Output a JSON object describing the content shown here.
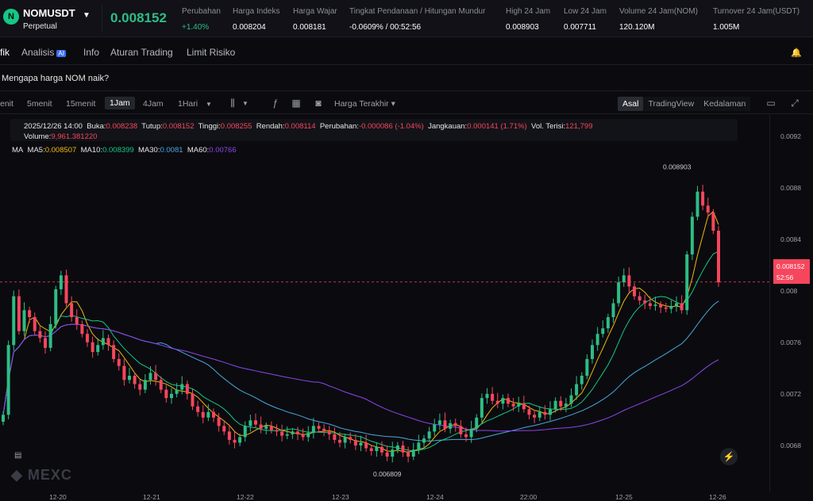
{
  "header": {
    "symbol": "NOMUSDT",
    "type": "Perpetual",
    "price": "0.008152",
    "stats": [
      {
        "label": "Perubahan",
        "value": "+1.40%",
        "green": true
      },
      {
        "label": "Harga Indeks",
        "value": "0.008204"
      },
      {
        "label": "Harga Wajar",
        "value": "0.008181"
      },
      {
        "label": "Tingkat Pendanaan / Hitungan Mundur",
        "value": "-0.0609% / 00:52:56"
      },
      {
        "label": "High 24 Jam",
        "value": "0.008903"
      },
      {
        "label": "Low 24 Jam",
        "value": "0.007711"
      },
      {
        "label": "Volume 24 Jam(NOM)",
        "value": "120.120M"
      },
      {
        "label": "Turnover 24 Jam(USDT)",
        "value": "1.005M"
      }
    ]
  },
  "tabs": {
    "grafik": "fik",
    "analisis": "Analisis",
    "ai_badge": "AI",
    "info": "Info",
    "aturan": "Aturan Trading",
    "limit": "Limit Risiko"
  },
  "prompt": "Mengapa harga NOM naik?",
  "toolbar": {
    "intervals": [
      "enit",
      "5menit",
      "15menit",
      "1Jam",
      "4Jam",
      "1Hari"
    ],
    "active_interval": "1Jam",
    "price_type": "Harga Terakhir",
    "views": [
      "Asal",
      "TradingView",
      "Kedalaman"
    ],
    "active_view": "Asal"
  },
  "ohlc": {
    "date": "2025/12/26 14:00",
    "buka_label": "Buka:",
    "buka": "0.008238",
    "tutup_label": "Tutup:",
    "tutup": "0.008152",
    "tinggi_label": "Tinggi:",
    "tinggi": "0.008255",
    "rendah_label": "Rendah:",
    "rendah": "0.008114",
    "perubahan_label": "Perubahan:",
    "perubahan": "-0.000086 (-1.04%)",
    "jangkauan_label": "Jangkauan:",
    "jangkauan": "0.000141 (1.71%)",
    "vol_label": "Vol. Terisi:",
    "vol": "121,799",
    "volume_label": "Volume:",
    "volume": "9,961.381220"
  },
  "ma": {
    "label": "MA",
    "ma5_label": "MA5:",
    "ma5": "0.008507",
    "ma10_label": "MA10:",
    "ma10": "0.008399",
    "ma30_label": "MA30:",
    "ma30": "0.0081",
    "ma60_label": "MA60:",
    "ma60": "0.00766"
  },
  "colors": {
    "up": "#2ebd85",
    "down": "#f6465d",
    "ma5": "#f0b90b",
    "ma10": "#16c784",
    "ma30": "#4aa8e0",
    "ma60": "#8e44ec"
  },
  "chart_data": {
    "type": "candlestick",
    "y_ticks": [
      "0.0092",
      "0.0088",
      "0.0084",
      "0.008",
      "0.0076",
      "0.0072",
      "0.0068"
    ],
    "x_ticks": [
      "12-20",
      "12-21",
      "12-22",
      "12-23",
      "12-24",
      "22:00",
      "12-25",
      "12-26"
    ],
    "ylim": [
      0.00665,
      0.00935
    ],
    "current_price": "0.008152",
    "countdown": "52:56",
    "high_label": "0.008903",
    "low_label": "0.006809",
    "close": [
      0.0072,
      0.0077,
      0.00805,
      0.0078,
      0.00795,
      0.0079,
      0.0078,
      0.00775,
      0.00768,
      0.00785,
      0.0081,
      0.0082,
      0.008,
      0.0079,
      0.00785,
      0.00778,
      0.00772,
      0.00765,
      0.0077,
      0.00775,
      0.0077,
      0.0076,
      0.00755,
      0.00745,
      0.00748,
      0.00742,
      0.00738,
      0.00745,
      0.0075,
      0.00745,
      0.00738,
      0.00732,
      0.00735,
      0.00738,
      0.00742,
      0.00735,
      0.00726,
      0.00722,
      0.00718,
      0.00722,
      0.00718,
      0.00712,
      0.00708,
      0.00702,
      0.007,
      0.00704,
      0.00712,
      0.00716,
      0.00713,
      0.0071,
      0.00712,
      0.00709,
      0.00708,
      0.00705,
      0.00706,
      0.00708,
      0.00706,
      0.00704,
      0.00707,
      0.00712,
      0.0071,
      0.00708,
      0.00706,
      0.00702,
      0.007,
      0.00704,
      0.00702,
      0.00698,
      0.007,
      0.00696,
      0.00694,
      0.00697,
      0.00693,
      0.0069,
      0.00695,
      0.00698,
      0.00693,
      0.0069,
      0.00695,
      0.007,
      0.00703,
      0.00708,
      0.00713,
      0.00716,
      0.0071,
      0.00714,
      0.00712,
      0.00706,
      0.00704,
      0.0071,
      0.00718,
      0.00732,
      0.00735,
      0.0073,
      0.00728,
      0.00732,
      0.00728,
      0.00726,
      0.00728,
      0.00724,
      0.0072,
      0.00718,
      0.00722,
      0.0072,
      0.00724,
      0.0073,
      0.00726,
      0.00728,
      0.00734,
      0.00742,
      0.00748,
      0.0076,
      0.0077,
      0.00778,
      0.00782,
      0.0079,
      0.008,
      0.00815,
      0.0082,
      0.00812,
      0.00805,
      0.00802,
      0.008,
      0.00798,
      0.00799,
      0.00797,
      0.00796,
      0.00798,
      0.008,
      0.00795,
      0.00835,
      0.00862,
      0.0088,
      0.0087,
      0.00865,
      0.00852,
      0.00815
    ]
  }
}
